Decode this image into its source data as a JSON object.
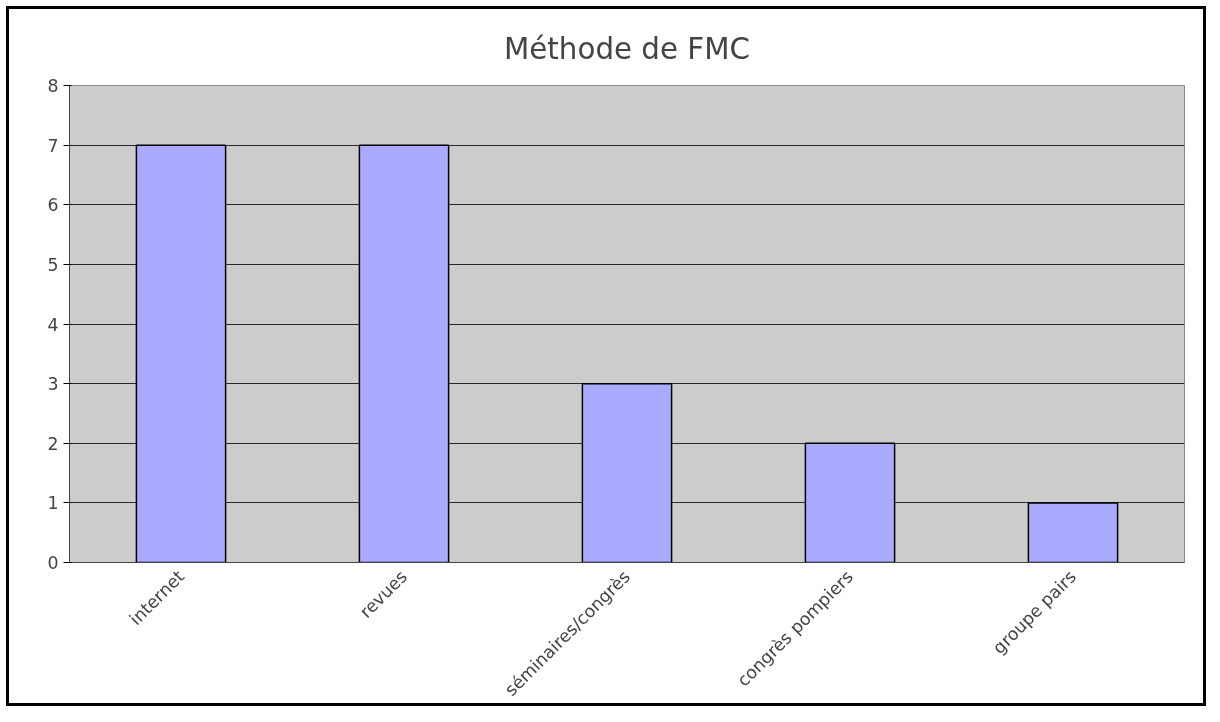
{
  "chart_data": {
    "type": "bar",
    "title": "Méthode de FMC",
    "categories": [
      "internet",
      "revues",
      "séminaires/congrès",
      "congrès pompiers",
      "groupe pairs"
    ],
    "values": [
      7,
      7,
      3,
      2,
      1
    ],
    "color": "#aaaaff",
    "ylim": [
      0,
      8
    ],
    "yticks": [
      0,
      1,
      2,
      3,
      4,
      5,
      6,
      7,
      8
    ],
    "grid": "y"
  }
}
